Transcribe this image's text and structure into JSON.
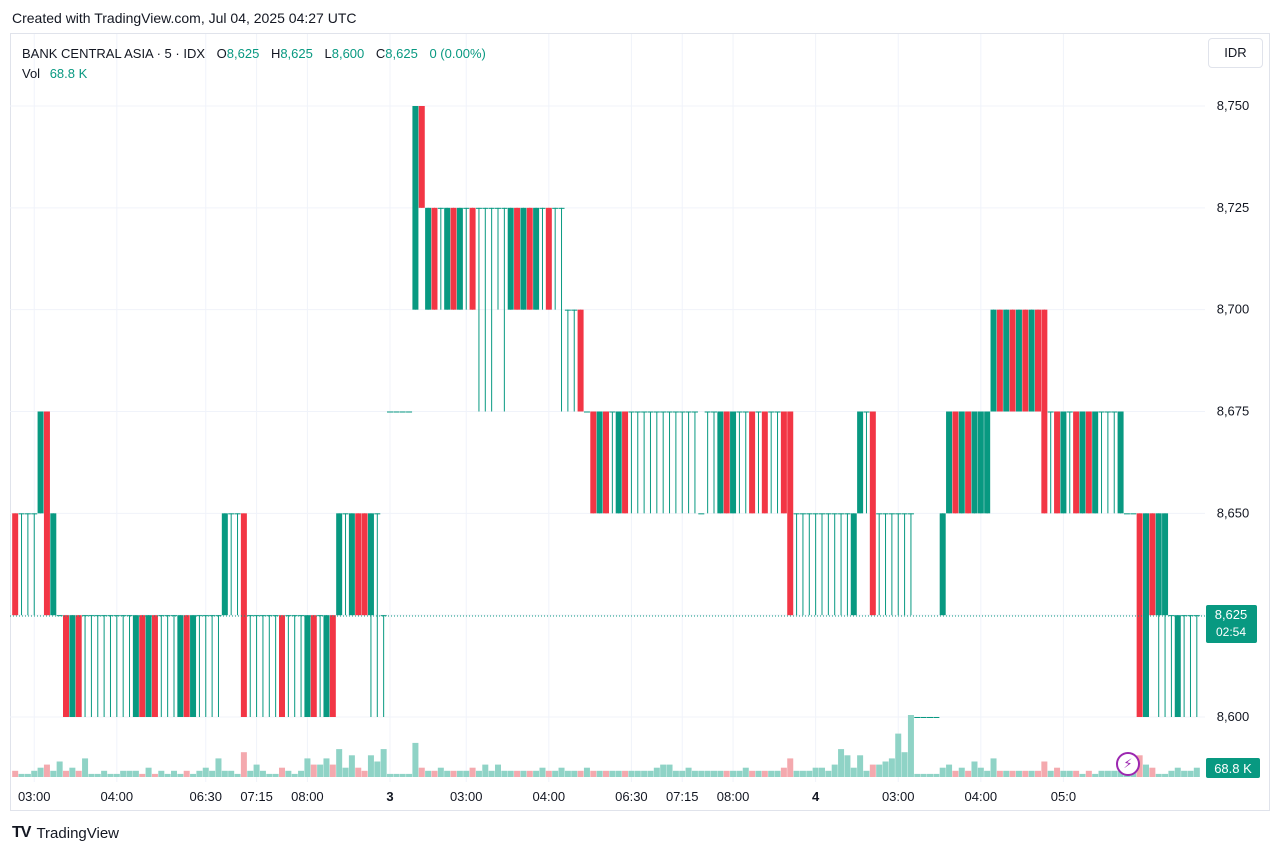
{
  "caption": "Created with TradingView.com, Jul 04, 2025 04:27 UTC",
  "legend": {
    "symbol": "BANK CENTRAL ASIA · 5 · IDX",
    "o_label": "O",
    "o_value": "8,625",
    "h_label": "H",
    "h_value": "8,625",
    "l_label": "L",
    "l_value": "8,600",
    "c_label": "C",
    "c_value": "8,625",
    "change": "0 (0.00%)",
    "vol_label": "Vol",
    "vol_value": "68.8 K"
  },
  "currency": "IDR",
  "brand": {
    "logo": "TV",
    "name": "TradingView"
  },
  "colors": {
    "up": "#089981",
    "down": "#f23645",
    "vol_up": "#8fd3c6",
    "vol_down": "#f4a9ae",
    "grid": "#f0f3fa"
  },
  "chart_data": {
    "type": "candlestick",
    "price_ticks": [
      8600,
      8625,
      8650,
      8675,
      8700,
      8725,
      8750
    ],
    "price_tick_labels": [
      "8,600",
      "8,625",
      "8,650",
      "8,675",
      "8,700",
      "8,725",
      "8,750"
    ],
    "ylim": [
      8590,
      8765
    ],
    "time_labels": [
      "03:00",
      "04:00",
      "06:30",
      "07:15",
      "08:00",
      "3",
      "03:00",
      "04:00",
      "06:30",
      "07:15",
      "08:00",
      "4",
      "03:00",
      "04:00",
      "05:0"
    ],
    "time_label_bar_index": [
      3,
      16,
      30,
      38,
      46,
      59,
      71,
      84,
      97,
      105,
      113,
      126,
      139,
      152,
      165
    ],
    "last_price_label": "8,625",
    "countdown": "02:54",
    "last_volume_label": "68.8 K",
    "bars": [
      [
        8650,
        8650,
        8625,
        8625,
        "d",
        2
      ],
      [
        8650,
        8650,
        8625,
        8650,
        "u",
        1
      ],
      [
        8650,
        8650,
        8625,
        8650,
        "n",
        1
      ],
      [
        8650,
        8650,
        8625,
        8650,
        "n",
        2
      ],
      [
        8650,
        8675,
        8650,
        8675,
        "u",
        3
      ],
      [
        8675,
        8675,
        8625,
        8625,
        "d",
        4
      ],
      [
        8650,
        8650,
        8625,
        8625,
        "n",
        2
      ],
      [
        8625,
        8625,
        8625,
        8625,
        "n",
        5
      ],
      [
        8625,
        8625,
        8600,
        8600,
        "d",
        2
      ],
      [
        8600,
        8625,
        8600,
        8625,
        "u",
        3
      ],
      [
        8625,
        8625,
        8600,
        8600,
        "d",
        2
      ],
      [
        8625,
        8625,
        8600,
        8625,
        "u",
        6
      ],
      [
        8625,
        8625,
        8600,
        8625,
        "n",
        1
      ],
      [
        8625,
        8625,
        8600,
        8625,
        "n",
        1
      ],
      [
        8625,
        8625,
        8600,
        8625,
        "n",
        2
      ],
      [
        8625,
        8625,
        8600,
        8625,
        "n",
        1
      ],
      [
        8625,
        8625,
        8600,
        8625,
        "n",
        1
      ],
      [
        8625,
        8625,
        8600,
        8625,
        "n",
        2
      ],
      [
        8625,
        8625,
        8600,
        8625,
        "n",
        2
      ],
      [
        8600,
        8625,
        8600,
        8625,
        "u",
        2
      ],
      [
        8625,
        8625,
        8600,
        8600,
        "d",
        1
      ],
      [
        8600,
        8625,
        8600,
        8625,
        "u",
        3
      ],
      [
        8625,
        8625,
        8600,
        8600,
        "d",
        1
      ],
      [
        8625,
        8625,
        8600,
        8625,
        "n",
        2
      ],
      [
        8625,
        8625,
        8600,
        8625,
        "n",
        1
      ],
      [
        8625,
        8625,
        8600,
        8625,
        "n",
        2
      ],
      [
        8600,
        8625,
        8600,
        8625,
        "u",
        1
      ],
      [
        8625,
        8625,
        8600,
        8600,
        "d",
        2
      ],
      [
        8600,
        8625,
        8600,
        8625,
        "u",
        1
      ],
      [
        8625,
        8625,
        8600,
        8625,
        "n",
        2
      ],
      [
        8625,
        8625,
        8600,
        8625,
        "n",
        3
      ],
      [
        8625,
        8625,
        8600,
        8625,
        "n",
        2
      ],
      [
        8625,
        8625,
        8600,
        8625,
        "n",
        6
      ],
      [
        8625,
        8650,
        8625,
        8650,
        "u",
        2
      ],
      [
        8650,
        8650,
        8625,
        8650,
        "n",
        2
      ],
      [
        8650,
        8650,
        8625,
        8650,
        "n",
        1
      ],
      [
        8650,
        8650,
        8600,
        8600,
        "d",
        8
      ],
      [
        8625,
        8625,
        8600,
        8625,
        "n",
        2
      ],
      [
        8625,
        8625,
        8600,
        8625,
        "n",
        4
      ],
      [
        8625,
        8625,
        8600,
        8625,
        "n",
        2
      ],
      [
        8625,
        8625,
        8600,
        8625,
        "n",
        1
      ],
      [
        8625,
        8625,
        8600,
        8625,
        "n",
        1
      ],
      [
        8625,
        8625,
        8600,
        8600,
        "d",
        3
      ],
      [
        8625,
        8625,
        8600,
        8625,
        "n",
        2
      ],
      [
        8625,
        8625,
        8600,
        8625,
        "n",
        1
      ],
      [
        8625,
        8625,
        8600,
        8625,
        "n",
        2
      ],
      [
        8600,
        8625,
        8600,
        8625,
        "u",
        6
      ],
      [
        8625,
        8625,
        8600,
        8600,
        "d",
        4
      ],
      [
        8625,
        8625,
        8600,
        8625,
        "n",
        4
      ],
      [
        8600,
        8625,
        8600,
        8625,
        "u",
        6
      ],
      [
        8625,
        8625,
        8600,
        8600,
        "d",
        4
      ],
      [
        8625,
        8650,
        8625,
        8650,
        "u",
        9
      ],
      [
        8650,
        8650,
        8625,
        8650,
        "n",
        3
      ],
      [
        8625,
        8650,
        8625,
        8650,
        "u",
        7
      ],
      [
        8650,
        8650,
        8625,
        8625,
        "d",
        3
      ],
      [
        8650,
        8650,
        8625,
        8625,
        "d",
        2
      ],
      [
        8650,
        8650,
        8600,
        8625,
        "n",
        7
      ],
      [
        8650,
        8650,
        8600,
        8650,
        "n",
        5
      ],
      [
        8625,
        8625,
        8600,
        8625,
        "n",
        9
      ],
      [
        8675,
        8675,
        8675,
        8675,
        "n",
        1
      ],
      [
        8675,
        8675,
        8675,
        8675,
        "n",
        1
      ],
      [
        8675,
        8675,
        8675,
        8675,
        "n",
        1
      ],
      [
        8675,
        8675,
        8675,
        8675,
        "n",
        1
      ],
      [
        8700,
        8750,
        8700,
        8750,
        "u",
        11
      ],
      [
        8750,
        8750,
        8725,
        8725,
        "d",
        3
      ],
      [
        8700,
        8725,
        8700,
        8725,
        "u",
        2
      ],
      [
        8725,
        8725,
        8700,
        8700,
        "d",
        2
      ],
      [
        8725,
        8725,
        8700,
        8725,
        "n",
        3
      ],
      [
        8700,
        8725,
        8700,
        8725,
        "u",
        2
      ],
      [
        8725,
        8725,
        8700,
        8700,
        "d",
        2
      ],
      [
        8700,
        8725,
        8700,
        8725,
        "u",
        2
      ],
      [
        8725,
        8725,
        8700,
        8725,
        "n",
        2
      ],
      [
        8725,
        8725,
        8700,
        8700,
        "d",
        3
      ],
      [
        8725,
        8725,
        8675,
        8725,
        "n",
        2
      ],
      [
        8725,
        8725,
        8675,
        8725,
        "n",
        4
      ],
      [
        8725,
        8725,
        8675,
        8725,
        "n",
        2
      ],
      [
        8725,
        8725,
        8700,
        8725,
        "n",
        4
      ],
      [
        8725,
        8725,
        8675,
        8725,
        "n",
        2
      ],
      [
        8700,
        8725,
        8700,
        8725,
        "u",
        2
      ],
      [
        8725,
        8725,
        8700,
        8700,
        "d",
        2
      ],
      [
        8700,
        8725,
        8700,
        8725,
        "u",
        2
      ],
      [
        8725,
        8725,
        8700,
        8700,
        "d",
        2
      ],
      [
        8700,
        8725,
        8700,
        8725,
        "u",
        2
      ],
      [
        8725,
        8725,
        8700,
        8725,
        "n",
        3
      ],
      [
        8725,
        8725,
        8700,
        8700,
        "d",
        2
      ],
      [
        8725,
        8725,
        8700,
        8725,
        "n",
        2
      ],
      [
        8725,
        8725,
        8675,
        8725,
        "n",
        3
      ],
      [
        8700,
        8700,
        8675,
        8700,
        "n",
        2
      ],
      [
        8700,
        8700,
        8675,
        8700,
        "n",
        2
      ],
      [
        8700,
        8700,
        8675,
        8675,
        "d",
        2
      ],
      [
        8675,
        8675,
        8675,
        8675,
        "n",
        3
      ],
      [
        8675,
        8675,
        8650,
        8650,
        "d",
        2
      ],
      [
        8650,
        8675,
        8650,
        8675,
        "u",
        2
      ],
      [
        8675,
        8675,
        8650,
        8650,
        "d",
        2
      ],
      [
        8675,
        8675,
        8650,
        8675,
        "n",
        2
      ],
      [
        8650,
        8675,
        8650,
        8675,
        "u",
        2
      ],
      [
        8675,
        8675,
        8650,
        8650,
        "d",
        2
      ],
      [
        8675,
        8675,
        8650,
        8675,
        "n",
        2
      ],
      [
        8675,
        8675,
        8650,
        8675,
        "n",
        2
      ],
      [
        8675,
        8675,
        8650,
        8675,
        "n",
        2
      ],
      [
        8675,
        8675,
        8650,
        8675,
        "n",
        2
      ],
      [
        8675,
        8675,
        8650,
        8675,
        "n",
        3
      ],
      [
        8675,
        8675,
        8650,
        8675,
        "n",
        4
      ],
      [
        8675,
        8675,
        8650,
        8675,
        "n",
        4
      ],
      [
        8675,
        8675,
        8650,
        8675,
        "n",
        2
      ],
      [
        8675,
        8675,
        8650,
        8675,
        "n",
        2
      ],
      [
        8675,
        8675,
        8650,
        8675,
        "n",
        3
      ],
      [
        8675,
        8675,
        8650,
        8675,
        "n",
        2
      ],
      [
        8650,
        8650,
        8650,
        8650,
        "n",
        2
      ],
      [
        8675,
        8675,
        8650,
        8675,
        "n",
        2
      ],
      [
        8675,
        8675,
        8650,
        8675,
        "n",
        2
      ],
      [
        8650,
        8675,
        8650,
        8675,
        "u",
        2
      ],
      [
        8675,
        8675,
        8650,
        8650,
        "d",
        2
      ],
      [
        8650,
        8675,
        8650,
        8675,
        "u",
        2
      ],
      [
        8675,
        8675,
        8650,
        8675,
        "n",
        2
      ],
      [
        8675,
        8675,
        8650,
        8675,
        "n",
        3
      ],
      [
        8675,
        8675,
        8650,
        8650,
        "d",
        2
      ],
      [
        8675,
        8675,
        8650,
        8675,
        "n",
        2
      ],
      [
        8675,
        8675,
        8650,
        8650,
        "d",
        2
      ],
      [
        8675,
        8675,
        8650,
        8675,
        "n",
        2
      ],
      [
        8675,
        8675,
        8650,
        8675,
        "n",
        2
      ],
      [
        8675,
        8675,
        8650,
        8650,
        "d",
        3
      ],
      [
        8675,
        8675,
        8625,
        8625,
        "d",
        6
      ],
      [
        8650,
        8650,
        8625,
        8650,
        "n",
        2
      ],
      [
        8650,
        8650,
        8625,
        8650,
        "n",
        2
      ],
      [
        8650,
        8650,
        8625,
        8650,
        "n",
        2
      ],
      [
        8650,
        8650,
        8625,
        8650,
        "n",
        3
      ],
      [
        8650,
        8650,
        8625,
        8650,
        "n",
        3
      ],
      [
        8650,
        8650,
        8625,
        8650,
        "n",
        2
      ],
      [
        8650,
        8650,
        8625,
        8650,
        "n",
        4
      ],
      [
        8650,
        8650,
        8625,
        8650,
        "n",
        9
      ],
      [
        8650,
        8650,
        8625,
        8650,
        "n",
        7
      ],
      [
        8625,
        8650,
        8625,
        8650,
        "u",
        3
      ],
      [
        8650,
        8675,
        8650,
        8675,
        "u",
        7
      ],
      [
        8675,
        8675,
        8650,
        8675,
        "n",
        2
      ],
      [
        8675,
        8675,
        8625,
        8625,
        "d",
        4
      ],
      [
        8650,
        8650,
        8625,
        8650,
        "n",
        4
      ],
      [
        8650,
        8650,
        8625,
        8650,
        "n",
        5
      ],
      [
        8650,
        8650,
        8625,
        8650,
        "n",
        6
      ],
      [
        8650,
        8650,
        8625,
        8650,
        "n",
        14
      ],
      [
        8650,
        8650,
        8625,
        8650,
        "n",
        8
      ],
      [
        8650,
        8650,
        8625,
        8650,
        "n",
        20
      ],
      [
        8600,
        8600,
        8600,
        8600,
        "n",
        1
      ],
      [
        8600,
        8600,
        8600,
        8600,
        "n",
        1
      ],
      [
        8600,
        8600,
        8600,
        8600,
        "n",
        1
      ],
      [
        8600,
        8600,
        8600,
        8600,
        "n",
        1
      ],
      [
        8625,
        8650,
        8625,
        8650,
        "n",
        3
      ],
      [
        8650,
        8675,
        8650,
        8675,
        "u",
        4
      ],
      [
        8675,
        8675,
        8650,
        8650,
        "d",
        2
      ],
      [
        8650,
        8675,
        8650,
        8675,
        "u",
        3
      ],
      [
        8675,
        8675,
        8650,
        8650,
        "d",
        2
      ],
      [
        8650,
        8675,
        8650,
        8675,
        "u",
        5
      ],
      [
        8650,
        8675,
        8650,
        8675,
        "u",
        3
      ],
      [
        8650,
        8675,
        8650,
        8675,
        "u",
        2
      ],
      [
        8675,
        8700,
        8675,
        8700,
        "u",
        6
      ],
      [
        8700,
        8700,
        8675,
        8675,
        "d",
        2
      ],
      [
        8675,
        8700,
        8675,
        8700,
        "u",
        2
      ],
      [
        8700,
        8700,
        8675,
        8675,
        "d",
        2
      ],
      [
        8675,
        8700,
        8675,
        8700,
        "u",
        2
      ],
      [
        8700,
        8700,
        8675,
        8675,
        "d",
        2
      ],
      [
        8675,
        8700,
        8675,
        8700,
        "u",
        2
      ],
      [
        8700,
        8700,
        8675,
        8675,
        "d",
        2
      ],
      [
        8700,
        8700,
        8650,
        8650,
        "d",
        5
      ],
      [
        8675,
        8675,
        8650,
        8675,
        "n",
        2
      ],
      [
        8675,
        8675,
        8650,
        8650,
        "d",
        3
      ],
      [
        8650,
        8675,
        8650,
        8675,
        "u",
        2
      ],
      [
        8675,
        8675,
        8650,
        8675,
        "n",
        2
      ],
      [
        8675,
        8675,
        8650,
        8650,
        "d",
        2
      ],
      [
        8650,
        8675,
        8650,
        8675,
        "u",
        1
      ],
      [
        8675,
        8675,
        8650,
        8650,
        "d",
        2
      ],
      [
        8650,
        8675,
        8650,
        8675,
        "u",
        1
      ],
      [
        8675,
        8675,
        8650,
        8675,
        "n",
        2
      ],
      [
        8675,
        8675,
        8650,
        8675,
        "n",
        2
      ],
      [
        8675,
        8675,
        8650,
        8675,
        "n",
        2
      ],
      [
        8675,
        8675,
        8650,
        8650,
        "n",
        2
      ],
      [
        8650,
        8650,
        8650,
        8650,
        "n",
        2
      ],
      [
        8650,
        8650,
        8650,
        8650,
        "n",
        3
      ],
      [
        8650,
        8650,
        8600,
        8600,
        "d",
        7
      ],
      [
        8600,
        8650,
        8600,
        8650,
        "u",
        4
      ],
      [
        8650,
        8650,
        8625,
        8625,
        "d",
        3
      ],
      [
        8650,
        8650,
        8600,
        8625,
        "n",
        1
      ],
      [
        8650,
        8650,
        8600,
        8625,
        "n",
        1
      ],
      [
        8625,
        8625,
        8600,
        8625,
        "n",
        2
      ],
      [
        8600,
        8625,
        8600,
        8625,
        "u",
        3
      ],
      [
        8625,
        8625,
        8600,
        8625,
        "n",
        2
      ],
      [
        8625,
        8625,
        8600,
        8625,
        "n",
        2
      ],
      [
        8625,
        8625,
        8600,
        8625,
        "n",
        3
      ]
    ]
  }
}
